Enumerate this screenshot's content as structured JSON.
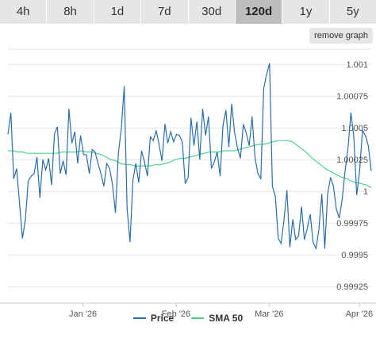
{
  "tabs": [
    {
      "label": "4h",
      "active": false
    },
    {
      "label": "8h",
      "active": false
    },
    {
      "label": "1d",
      "active": false
    },
    {
      "label": "7d",
      "active": false
    },
    {
      "label": "30d",
      "active": false
    },
    {
      "label": "120d",
      "active": true
    },
    {
      "label": "1y",
      "active": false
    },
    {
      "label": "5y",
      "active": false
    }
  ],
  "remove_graph_label": "remove graph",
  "colors": {
    "price": "#2a6ea8",
    "sma": "#4fd18b",
    "grid": "#e6e6e6"
  },
  "chart_data": {
    "type": "line",
    "x_tick_labels": [
      "Jan '26",
      "Feb '26",
      "Mar '26",
      "Apr '26"
    ],
    "x_tick_positions": [
      19,
      50,
      81,
      111
    ],
    "y_tick_labels": [
      "1.001",
      "1.00075",
      "1.0005",
      "1.00025",
      "1",
      "0.99975",
      "0.9995",
      "0.99925"
    ],
    "y_tick_values": [
      1.001,
      1.00075,
      1.0005,
      1.00025,
      1.0,
      0.99975,
      0.9995,
      0.99925
    ],
    "x_range": [
      -6,
      115
    ],
    "ylim": [
      0.99912,
      1.00112
    ],
    "grid": true,
    "legend_position": "bottom",
    "series": [
      {
        "name": "Price",
        "values": [
          1.00045,
          1.00062,
          1.0001,
          1.00018,
          0.9999,
          0.99963,
          0.99978,
          1.00008,
          1.00012,
          1.00014,
          1.00027,
          0.99995,
          1.00025,
          1.00017,
          1.00026,
          1.00005,
          1.00045,
          1.00051,
          1.00014,
          1.00024,
          1.00013,
          1.00065,
          1.00038,
          1.00047,
          1.00022,
          1.00044,
          1.00029,
          1.00029,
          1.00014,
          1.00033,
          1.00031,
          1.00022,
          1.00014,
          1.00004,
          1.00022,
          1.00018,
          1.00005,
          0.99983,
          1.0003,
          1.00049,
          1.00083,
          0.99987,
          0.9996,
          1.00009,
          1.00022,
          1.00007,
          1.00032,
          1.00023,
          1.00012,
          1.00043,
          1.0004,
          1.00048,
          1.00037,
          1.00024,
          1.00053,
          1.00038,
          1.00047,
          1.00039,
          1.00045,
          1.00044,
          1.00039,
          1.00006,
          1.00011,
          1.00058,
          1.00036,
          1.00055,
          1.00025,
          1.00065,
          1.00044,
          1.00059,
          1.00018,
          1.00023,
          1.00031,
          1.00012,
          1.00052,
          1.00064,
          1.00035,
          1.00069,
          1.00046,
          1.00034,
          1.00026,
          1.00053,
          1.00046,
          1.00036,
          1.00059,
          1.00027,
          1.00014,
          1.0001,
          1.00081,
          1.00092,
          1.00101,
          1.00004,
          0.99996,
          0.99963,
          0.99959,
          0.99978,
          1.00001,
          0.99956,
          0.99978,
          0.99962,
          0.99965,
          0.99988,
          0.99962,
          0.99971,
          0.99982,
          0.9996,
          0.99955,
          0.9997,
          0.99998,
          0.99955,
          0.99998,
          1.00011,
          1.00004,
          0.99986,
          0.99979,
          0.99994,
          1.00016,
          1.00034,
          1.00062,
          1.00043,
          0.99997,
          1.00016,
          1.00048,
          1.00044,
          1.00036,
          1.00016
        ]
      },
      {
        "name": "SMA 50",
        "values": [
          1.00032,
          1.00032,
          1.00031,
          1.00031,
          1.0003,
          1.0003,
          1.0003,
          1.0003,
          1.0003,
          1.0003,
          1.0003,
          1.00031,
          1.00031,
          1.00031,
          1.00031,
          1.00032,
          1.00031,
          1.00031,
          1.0003,
          1.00029,
          1.00027,
          1.00025,
          1.00024,
          1.00022,
          1.00021,
          1.00021,
          1.0002,
          1.0002,
          1.0002,
          1.0002,
          1.00021,
          1.00021,
          1.00022,
          1.00023,
          1.00025,
          1.00026,
          1.00026,
          1.00027,
          1.00028,
          1.00029,
          1.0003,
          1.00031,
          1.00031,
          1.00031,
          1.00032,
          1.00032,
          1.00032,
          1.00033,
          1.00034,
          1.00035,
          1.00036,
          1.00037,
          1.00037,
          1.00038,
          1.00039,
          1.0004,
          1.0004,
          1.0004,
          1.00039,
          1.00036,
          1.00033,
          1.0003,
          1.00026,
          1.00023,
          1.0002,
          1.00017,
          1.00015,
          1.00013,
          1.00011,
          1.0001,
          1.00008,
          1.00007,
          1.00006,
          1.00005,
          1.00003
        ]
      }
    ]
  },
  "legend": {
    "price_label": "Price",
    "sma_label": "SMA 50"
  }
}
